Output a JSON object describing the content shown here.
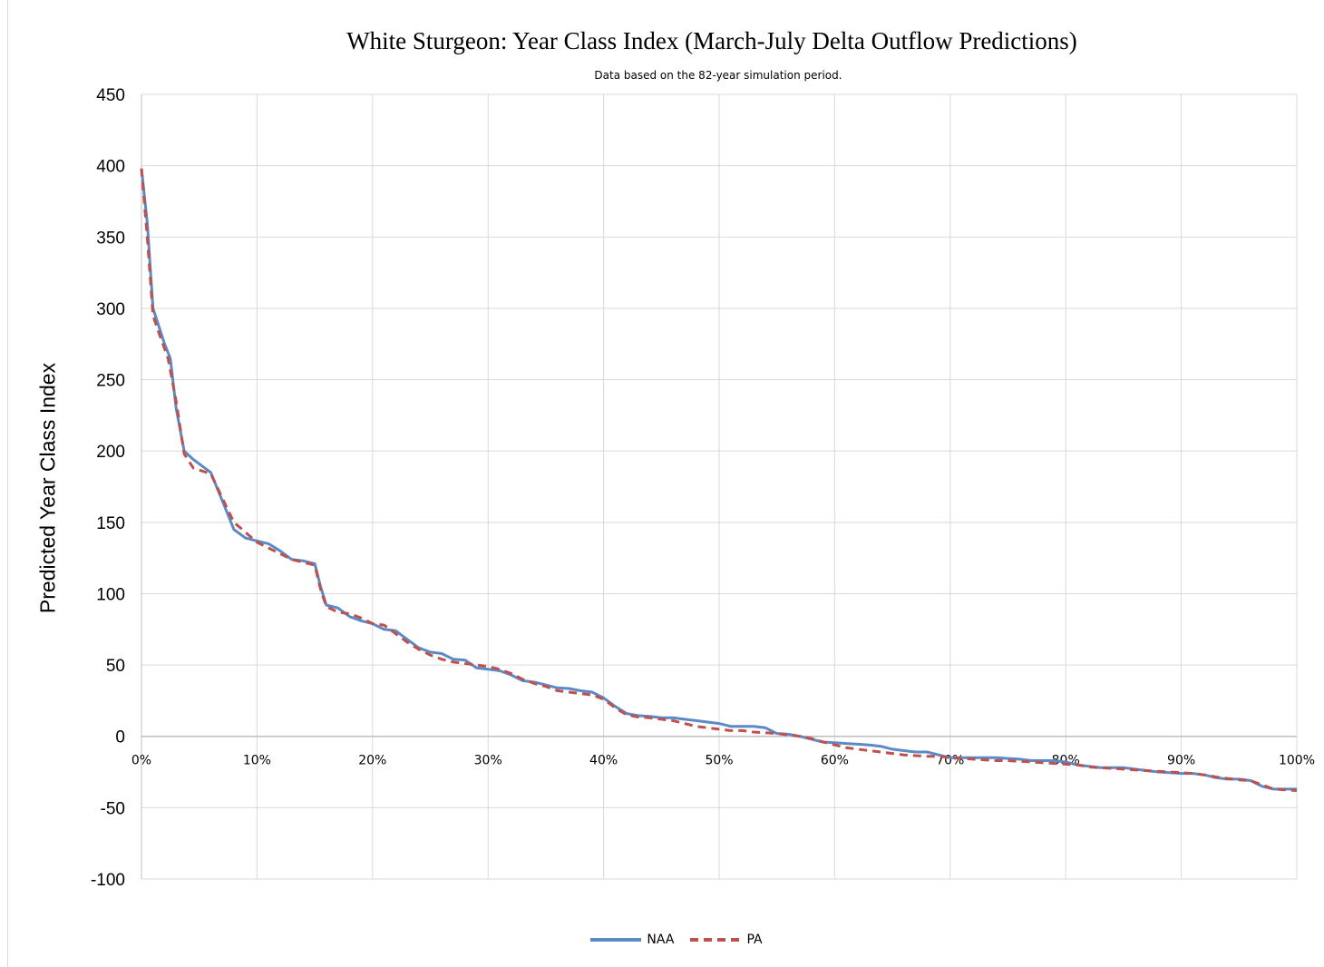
{
  "chart_data": {
    "type": "line",
    "title": "White Sturgeon: Year Class Index (March-July Delta Outflow Predictions)",
    "subtitle": "Data based on the 82-year simulation period.",
    "xlabel": "",
    "ylabel": "Predicted Year Class Index",
    "xlim": [
      0,
      100
    ],
    "ylim": [
      -100,
      450
    ],
    "x_ticks": [
      "0%",
      "10%",
      "20%",
      "30%",
      "40%",
      "50%",
      "60%",
      "70%",
      "80%",
      "90%",
      "100%"
    ],
    "y_ticks": [
      "450",
      "400",
      "350",
      "300",
      "250",
      "200",
      "150",
      "100",
      "50",
      "0",
      "-50",
      "-100"
    ],
    "grid": true,
    "legend_position": "bottom",
    "series": [
      {
        "name": "NAA",
        "color": "#5b8ac6",
        "style": "solid",
        "points": [
          [
            0,
            398
          ],
          [
            0.5,
            360
          ],
          [
            1,
            300
          ],
          [
            2,
            275
          ],
          [
            2.5,
            265
          ],
          [
            3,
            230
          ],
          [
            3.7,
            200
          ],
          [
            4.5,
            194
          ],
          [
            6,
            185
          ],
          [
            7,
            165
          ],
          [
            8,
            145
          ],
          [
            9,
            139
          ],
          [
            10,
            137
          ],
          [
            11,
            135
          ],
          [
            12,
            130
          ],
          [
            13,
            124
          ],
          [
            14,
            123
          ],
          [
            15,
            121
          ],
          [
            15.5,
            105
          ],
          [
            16,
            92
          ],
          [
            17,
            90
          ],
          [
            18,
            84
          ],
          [
            19,
            81
          ],
          [
            20,
            79
          ],
          [
            21,
            75
          ],
          [
            22,
            74
          ],
          [
            23,
            68
          ],
          [
            24,
            62
          ],
          [
            25,
            59
          ],
          [
            26,
            58
          ],
          [
            27,
            54
          ],
          [
            28,
            53.5
          ],
          [
            29,
            48
          ],
          [
            30,
            47
          ],
          [
            31,
            46
          ],
          [
            32,
            43
          ],
          [
            33,
            39
          ],
          [
            34,
            38
          ],
          [
            35,
            36
          ],
          [
            36,
            34
          ],
          [
            37,
            33.5
          ],
          [
            38,
            32
          ],
          [
            39,
            31
          ],
          [
            40,
            27
          ],
          [
            41,
            21
          ],
          [
            42,
            16
          ],
          [
            43,
            14.5
          ],
          [
            44,
            14
          ],
          [
            45,
            13
          ],
          [
            46,
            13
          ],
          [
            47,
            12
          ],
          [
            48,
            11
          ],
          [
            49,
            10
          ],
          [
            50,
            9
          ],
          [
            51,
            7
          ],
          [
            52,
            7
          ],
          [
            53,
            7
          ],
          [
            54,
            6
          ],
          [
            55,
            2
          ],
          [
            56,
            1.5
          ],
          [
            57,
            0
          ],
          [
            58,
            -2
          ],
          [
            59,
            -4
          ],
          [
            60,
            -4.5
          ],
          [
            61,
            -5
          ],
          [
            62,
            -5.5
          ],
          [
            63,
            -6
          ],
          [
            64,
            -7
          ],
          [
            65,
            -9
          ],
          [
            66,
            -10
          ],
          [
            67,
            -11
          ],
          [
            68,
            -11
          ],
          [
            69,
            -13
          ],
          [
            70,
            -15
          ],
          [
            71,
            -15
          ],
          [
            72,
            -15
          ],
          [
            73,
            -15
          ],
          [
            74,
            -15
          ],
          [
            75,
            -15.5
          ],
          [
            76,
            -16
          ],
          [
            77,
            -17
          ],
          [
            78,
            -17
          ],
          [
            79,
            -17
          ],
          [
            80,
            -18
          ],
          [
            81,
            -20
          ],
          [
            82,
            -21
          ],
          [
            83,
            -22
          ],
          [
            84,
            -22
          ],
          [
            85,
            -22
          ],
          [
            86,
            -23
          ],
          [
            87,
            -24
          ],
          [
            88,
            -25
          ],
          [
            89,
            -25.5
          ],
          [
            90,
            -26
          ],
          [
            91,
            -26
          ],
          [
            92,
            -27
          ],
          [
            93,
            -29
          ],
          [
            94,
            -30
          ],
          [
            95,
            -30
          ],
          [
            96,
            -31
          ],
          [
            97,
            -35
          ],
          [
            98,
            -37
          ],
          [
            99,
            -37
          ],
          [
            100,
            -37
          ]
        ]
      },
      {
        "name": "PA",
        "color": "#c0504d",
        "style": "dashed",
        "points": [
          [
            0,
            398
          ],
          [
            0.5,
            350
          ],
          [
            1,
            295
          ],
          [
            1.5,
            283
          ],
          [
            2.3,
            265
          ],
          [
            3,
            235
          ],
          [
            3.7,
            198
          ],
          [
            4.5,
            188
          ],
          [
            6,
            184
          ],
          [
            7,
            167
          ],
          [
            8,
            150
          ],
          [
            9,
            143
          ],
          [
            10,
            136
          ],
          [
            11,
            132
          ],
          [
            12,
            128
          ],
          [
            13,
            124
          ],
          [
            14,
            122
          ],
          [
            15,
            120
          ],
          [
            15.5,
            103
          ],
          [
            16,
            91
          ],
          [
            17,
            87
          ],
          [
            18,
            86
          ],
          [
            19,
            83
          ],
          [
            20,
            79
          ],
          [
            21,
            78
          ],
          [
            22,
            72
          ],
          [
            23,
            66
          ],
          [
            24,
            61
          ],
          [
            25,
            57
          ],
          [
            26,
            54
          ],
          [
            27,
            52
          ],
          [
            28,
            51
          ],
          [
            29,
            50
          ],
          [
            30,
            49
          ],
          [
            31,
            47
          ],
          [
            32,
            44
          ],
          [
            33,
            40
          ],
          [
            34,
            37
          ],
          [
            35,
            35
          ],
          [
            36,
            32
          ],
          [
            37,
            31
          ],
          [
            38,
            30
          ],
          [
            39,
            29
          ],
          [
            40,
            26
          ],
          [
            41,
            20
          ],
          [
            42,
            15
          ],
          [
            43,
            13.5
          ],
          [
            44,
            13
          ],
          [
            45,
            12
          ],
          [
            46,
            11
          ],
          [
            47,
            9
          ],
          [
            48,
            7
          ],
          [
            49,
            6
          ],
          [
            50,
            5
          ],
          [
            51,
            4
          ],
          [
            52,
            4
          ],
          [
            53,
            3
          ],
          [
            54,
            2.5
          ],
          [
            55,
            2
          ],
          [
            56,
            1
          ],
          [
            57,
            0
          ],
          [
            58,
            -1.5
          ],
          [
            59,
            -4
          ],
          [
            60,
            -6
          ],
          [
            61,
            -8
          ],
          [
            62,
            -9
          ],
          [
            63,
            -10
          ],
          [
            64,
            -11
          ],
          [
            65,
            -12
          ],
          [
            66,
            -13
          ],
          [
            67,
            -13.5
          ],
          [
            68,
            -14
          ],
          [
            69,
            -14
          ],
          [
            70,
            -15
          ],
          [
            71,
            -15.5
          ],
          [
            72,
            -16
          ],
          [
            73,
            -16.5
          ],
          [
            74,
            -17
          ],
          [
            75,
            -17
          ],
          [
            76,
            -17.5
          ],
          [
            77,
            -18
          ],
          [
            78,
            -18.5
          ],
          [
            79,
            -19
          ],
          [
            80,
            -19.5
          ],
          [
            81,
            -20
          ],
          [
            82,
            -21.5
          ],
          [
            83,
            -22
          ],
          [
            84,
            -22.5
          ],
          [
            85,
            -23
          ],
          [
            86,
            -23.5
          ],
          [
            87,
            -24
          ],
          [
            88,
            -24.5
          ],
          [
            89,
            -25
          ],
          [
            90,
            -25.5
          ],
          [
            91,
            -26
          ],
          [
            92,
            -27
          ],
          [
            93,
            -28.5
          ],
          [
            94,
            -29.5
          ],
          [
            95,
            -30.5
          ],
          [
            96,
            -31
          ],
          [
            97,
            -34
          ],
          [
            98,
            -37
          ],
          [
            99,
            -37.5
          ],
          [
            100,
            -38
          ]
        ]
      }
    ]
  }
}
